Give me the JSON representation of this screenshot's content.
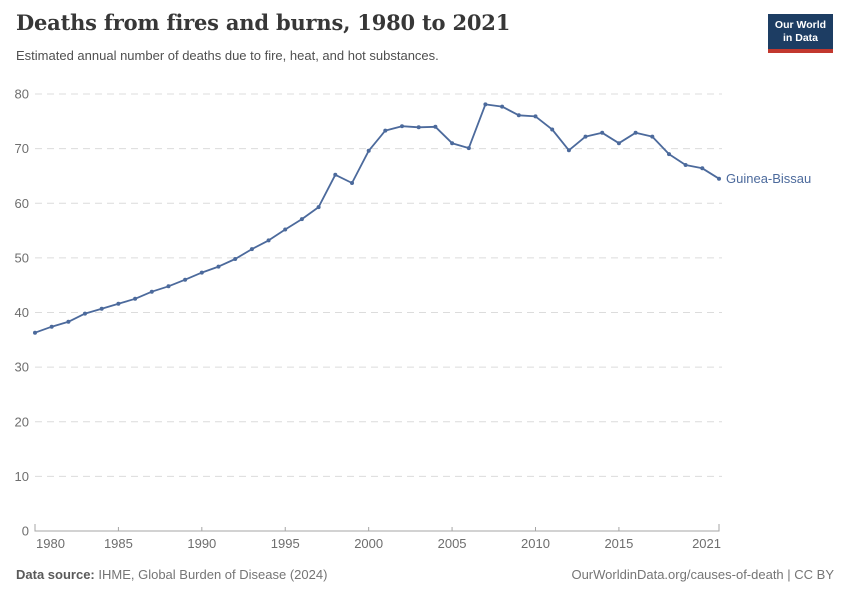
{
  "header": {
    "title": "Deaths from fires and burns, 1980 to 2021",
    "subtitle": "Estimated annual number of deaths due to fire, heat, and hot substances."
  },
  "logo": {
    "line1": "Our World",
    "line2": "in Data"
  },
  "chart_data": {
    "type": "line",
    "title": "Deaths from fires and burns, 1980 to 2021",
    "ylabel": "",
    "xlabel": "",
    "xlim": [
      1980,
      2021
    ],
    "ylim": [
      0,
      80
    ],
    "grid": "horizontal-dashed",
    "legend_position": "end-of-line",
    "years": [
      1980,
      1981,
      1982,
      1983,
      1984,
      1985,
      1986,
      1987,
      1988,
      1989,
      1990,
      1991,
      1992,
      1993,
      1994,
      1995,
      1996,
      1997,
      1998,
      1999,
      2000,
      2001,
      2002,
      2003,
      2004,
      2005,
      2006,
      2007,
      2008,
      2009,
      2010,
      2011,
      2012,
      2013,
      2014,
      2015,
      2016,
      2017,
      2018,
      2019,
      2020,
      2021
    ],
    "series": [
      {
        "name": "Guinea-Bissau",
        "color": "#4C6A9C",
        "values": [
          36.3,
          37.4,
          38.3,
          39.8,
          40.7,
          41.6,
          42.5,
          43.8,
          44.8,
          46.0,
          47.3,
          48.4,
          49.8,
          51.6,
          53.2,
          55.2,
          57.1,
          59.3,
          65.2,
          63.7,
          69.6,
          73.3,
          74.1,
          73.9,
          74.0,
          71.0,
          70.1,
          78.1,
          77.7,
          76.1,
          75.9,
          73.5,
          69.7,
          72.2,
          72.9,
          71.0,
          72.9,
          72.2,
          69.0,
          67.0,
          66.4,
          64.5
        ]
      }
    ],
    "xticks": [
      1980,
      1985,
      1990,
      1995,
      2000,
      2005,
      2010,
      2015,
      2021
    ],
    "yticks": [
      0,
      10,
      20,
      30,
      40,
      50,
      60,
      70,
      80
    ]
  },
  "footer": {
    "source_label": "Data source:",
    "source": " IHME, Global Burden of Disease (2024)",
    "credit": "OurWorldinData.org/causes-of-death | CC BY"
  },
  "colors": {
    "accent": "#4C6A9C",
    "grid": "#dcdcdc",
    "axis": "#a5a5a5",
    "tick_text": "#6e6e6e",
    "logo_bg": "#1d3d63",
    "logo_red": "#c2382e"
  }
}
